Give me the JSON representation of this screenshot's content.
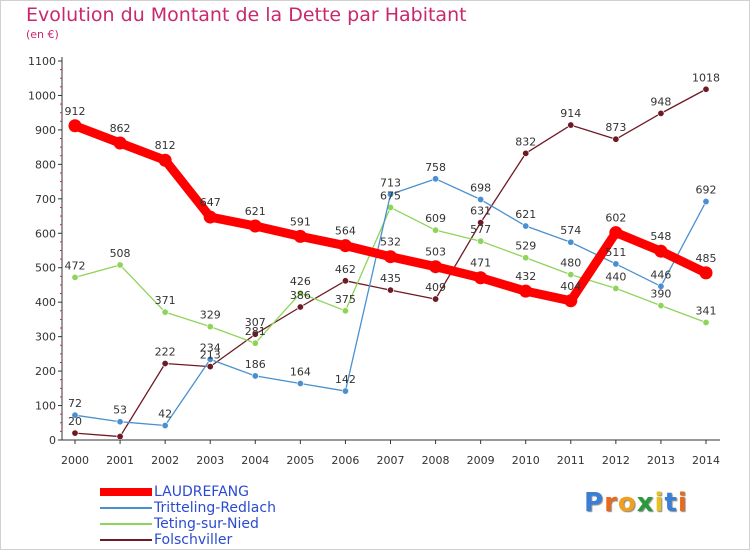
{
  "title": "Evolution du Montant de la Dette par Habitant",
  "subtitle": "(en €)",
  "brand": {
    "letters": [
      "P",
      "r",
      "o",
      "x",
      "i",
      "t",
      "i"
    ],
    "colors": [
      "#3a7fd5",
      "#e86a1a",
      "#f0a020",
      "#2a9a3a",
      "#e8c020",
      "#3a7fd5",
      "#e86a1a"
    ]
  },
  "chart_data": {
    "type": "line",
    "x": [
      "2000",
      "2001",
      "2002",
      "2003",
      "2004",
      "2005",
      "2006",
      "2007",
      "2008",
      "2009",
      "2010",
      "2011",
      "2012",
      "2013",
      "2014"
    ],
    "ylim": [
      0,
      1100
    ],
    "yticks": [
      "0",
      "100",
      "200",
      "300",
      "400",
      "500",
      "600",
      "700",
      "800",
      "900",
      "1000",
      "1100"
    ],
    "grid": false,
    "legend_position": "bottom-left",
    "series": [
      {
        "name": "Folschviller",
        "color": "#6e1a24",
        "values": [
          20,
          10,
          222,
          213,
          307,
          386,
          462,
          435,
          409,
          631,
          832,
          914,
          873,
          948,
          1018
        ],
        "labels": [
          "20",
          "",
          "222",
          "213",
          "307",
          "386",
          "462",
          "435",
          "409",
          "631",
          "832",
          "914",
          "873",
          "948",
          "1018"
        ]
      },
      {
        "name": "Teting-sur-Nied",
        "color": "#8fd45a",
        "values": [
          472,
          508,
          371,
          329,
          281,
          426,
          375,
          675,
          609,
          577,
          529,
          480,
          440,
          390,
          341
        ],
        "labels": [
          "472",
          "508",
          "371",
          "329",
          "281",
          "426",
          "375",
          "675",
          "609",
          "577",
          "529",
          "480",
          "440",
          "390",
          "341"
        ]
      },
      {
        "name": "Tritteling-Redlach",
        "color": "#4a90d0",
        "values": [
          72,
          53,
          42,
          234,
          186,
          164,
          142,
          713,
          758,
          698,
          621,
          574,
          511,
          446,
          692
        ],
        "labels": [
          "72",
          "53",
          "42",
          "234",
          "186",
          "164",
          "142",
          "713",
          "758",
          "698",
          "621",
          "574",
          "511",
          "446",
          "692"
        ]
      },
      {
        "name": "LAUDREFANG",
        "color": "#ff0000",
        "values": [
          912,
          862,
          812,
          647,
          621,
          591,
          564,
          532,
          503,
          471,
          432,
          404,
          602,
          548,
          485
        ],
        "labels": [
          "912",
          "862",
          "812",
          "647",
          "621",
          "591",
          "564",
          "532",
          "503",
          "471",
          "432",
          "404",
          "602",
          "548",
          "485"
        ]
      }
    ],
    "legend": [
      {
        "name": "LAUDREFANG",
        "color": "#ff0000",
        "thick": true
      },
      {
        "name": "Tritteling-Redlach",
        "color": "#4a90d0",
        "thick": false
      },
      {
        "name": "Teting-sur-Nied",
        "color": "#8fd45a",
        "thick": false
      },
      {
        "name": "Folschviller",
        "color": "#6e1a24",
        "thick": false
      }
    ]
  }
}
